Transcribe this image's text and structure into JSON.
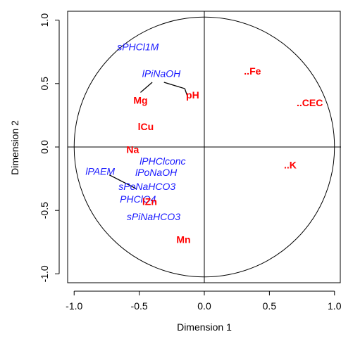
{
  "chart_data": {
    "type": "scatter",
    "xlabel": "Dimension 1",
    "ylabel": "Dimension 2",
    "xlim": [
      -1.05,
      1.05
    ],
    "ylim": [
      -1.07,
      1.07
    ],
    "xticks": [
      {
        "value": -1.0,
        "label": "-1.0"
      },
      {
        "value": -0.5,
        "label": "-0.5"
      },
      {
        "value": 0.0,
        "label": "0.0"
      },
      {
        "value": 0.5,
        "label": "0.5"
      },
      {
        "value": 1.0,
        "label": "1.0"
      }
    ],
    "yticks": [
      {
        "value": -1.0,
        "label": "-1.0"
      },
      {
        "value": -0.5,
        "label": "-0.5"
      },
      {
        "value": 0.0,
        "label": "0.0"
      },
      {
        "value": 0.5,
        "label": "0.5"
      },
      {
        "value": 1.0,
        "label": "1.0"
      }
    ],
    "unit_circle": true,
    "zero_lines": true,
    "grid": false,
    "colors": {
      "red_group": "#ff0000",
      "blue_group": "#1a1aff"
    },
    "points": [
      {
        "label": "sPHCl1M",
        "x": -0.51,
        "y": 0.79,
        "group": "blue"
      },
      {
        "label": "lPiNaOH",
        "x": -0.33,
        "y": 0.58,
        "group": "blue"
      },
      {
        "label": "..Fe",
        "x": 0.37,
        "y": 0.6,
        "group": "red"
      },
      {
        "label": "Mg",
        "x": -0.49,
        "y": 0.37,
        "group": "red"
      },
      {
        "label": "pH",
        "x": -0.09,
        "y": 0.41,
        "group": "red"
      },
      {
        "label": "..CEC",
        "x": 0.81,
        "y": 0.35,
        "group": "red"
      },
      {
        "label": "lCu",
        "x": -0.45,
        "y": 0.16,
        "group": "red"
      },
      {
        "label": "Na",
        "x": -0.55,
        "y": -0.02,
        "group": "red"
      },
      {
        "label": "lPHClconc",
        "x": -0.32,
        "y": -0.11,
        "group": "blue"
      },
      {
        "label": "..K",
        "x": 0.66,
        "y": -0.14,
        "group": "red"
      },
      {
        "label": "lPAEM",
        "x": -0.8,
        "y": -0.19,
        "group": "blue"
      },
      {
        "label": "lPoNaOH",
        "x": -0.37,
        "y": -0.2,
        "group": "blue"
      },
      {
        "label": "sPoNaHCO3",
        "x": -0.44,
        "y": -0.31,
        "group": "blue"
      },
      {
        "label": "PHClO4",
        "x": -0.51,
        "y": -0.41,
        "group": "blue"
      },
      {
        "label": "lZn",
        "x": -0.42,
        "y": -0.43,
        "group": "red"
      },
      {
        "label": "sPiNaHCO3",
        "x": -0.39,
        "y": -0.55,
        "group": "blue"
      },
      {
        "label": "Mn",
        "x": -0.16,
        "y": -0.73,
        "group": "red"
      }
    ],
    "connector_lines": [
      {
        "from": [
          -0.4,
          0.51
        ],
        "to": [
          -0.49,
          0.43
        ]
      },
      {
        "from": [
          -0.31,
          0.51
        ],
        "to": [
          -0.15,
          0.46
        ]
      },
      {
        "from": [
          -0.15,
          0.46
        ],
        "to": [
          -0.13,
          0.4
        ]
      },
      {
        "from": [
          -0.73,
          -0.22
        ],
        "to": [
          -0.52,
          -0.33
        ]
      }
    ]
  }
}
